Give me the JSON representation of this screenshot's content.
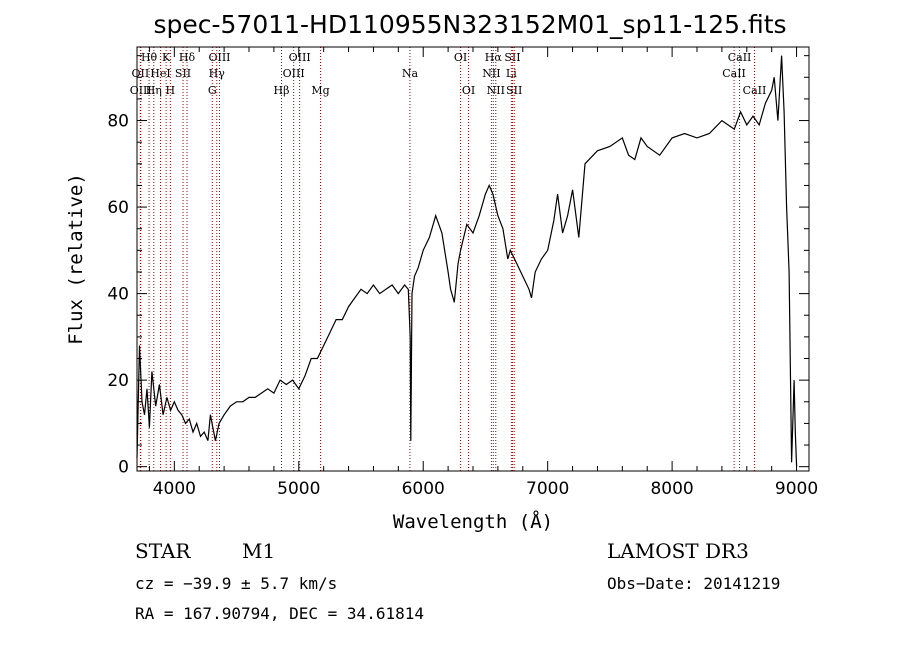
{
  "chart_data": {
    "type": "line",
    "title": "spec-57011-HD110955N323152M01_sp11-125.fits",
    "xlabel": "Wavelength (Å)",
    "ylabel": "Flux (relative)",
    "xlim": [
      3700,
      9100
    ],
    "ylim": [
      -1,
      97
    ],
    "x_ticks": [
      4000,
      5000,
      6000,
      7000,
      8000,
      9000
    ],
    "y_ticks": [
      0,
      20,
      40,
      60,
      80
    ],
    "series": [
      {
        "name": "flux",
        "x": [
          3700,
          3720,
          3740,
          3760,
          3780,
          3800,
          3820,
          3850,
          3880,
          3910,
          3940,
          3970,
          4000,
          4030,
          4060,
          4090,
          4120,
          4150,
          4180,
          4210,
          4240,
          4270,
          4290,
          4310,
          4330,
          4360,
          4400,
          4450,
          4500,
          4550,
          4600,
          4650,
          4700,
          4750,
          4800,
          4850,
          4900,
          4950,
          5000,
          5050,
          5100,
          5150,
          5200,
          5250,
          5300,
          5350,
          5400,
          5450,
          5500,
          5550,
          5600,
          5650,
          5700,
          5750,
          5800,
          5850,
          5880,
          5895,
          5900,
          5910,
          5930,
          5960,
          6000,
          6050,
          6100,
          6150,
          6200,
          6220,
          6250,
          6280,
          6300,
          6350,
          6400,
          6450,
          6500,
          6530,
          6560,
          6600,
          6640,
          6680,
          6700,
          6750,
          6800,
          6850,
          6870,
          6900,
          6950,
          7000,
          7050,
          7080,
          7120,
          7160,
          7200,
          7250,
          7300,
          7400,
          7500,
          7600,
          7650,
          7700,
          7750,
          7800,
          7900,
          8000,
          8100,
          8200,
          8300,
          8400,
          8500,
          8550,
          8600,
          8650,
          8700,
          8750,
          8800,
          8820,
          8850,
          8880,
          8900,
          8920,
          8940,
          8960,
          8980,
          8990,
          9000
        ],
        "values": [
          2,
          28,
          15,
          12,
          18,
          9,
          22,
          14,
          19,
          12,
          16,
          13,
          15,
          13,
          12,
          10,
          11,
          8,
          10,
          7,
          8,
          6,
          12,
          9,
          6,
          10,
          12,
          14,
          15,
          15,
          16,
          16,
          17,
          18,
          17,
          20,
          19,
          20,
          18,
          21,
          25,
          25,
          28,
          31,
          34,
          34,
          37,
          39,
          41,
          40,
          42,
          40,
          41,
          42,
          40,
          42,
          41,
          30,
          6,
          40,
          44,
          46,
          50,
          53,
          58,
          54,
          45,
          41,
          38,
          47,
          50,
          56,
          54,
          58,
          63,
          65,
          63,
          58,
          55,
          48,
          50,
          47,
          44,
          41,
          39,
          45,
          48,
          50,
          57,
          63,
          54,
          58,
          64,
          53,
          70,
          73,
          74,
          76,
          72,
          71,
          76,
          74,
          72,
          76,
          77,
          76,
          77,
          80,
          78,
          82,
          79,
          81,
          79,
          84,
          87,
          90,
          80,
          95,
          82,
          60,
          45,
          1,
          20,
          8,
          0
        ],
        "color": "#000000"
      }
    ],
    "spectral_lines": [
      {
        "label": "Hθ",
        "x": 3797,
        "row": 1
      },
      {
        "label": "OII",
        "x": 3727,
        "row": 2
      },
      {
        "label": "OIII",
        "x": 3730,
        "row": 3
      },
      {
        "label": "K",
        "x": 3934,
        "row": 1
      },
      {
        "label": "HeI",
        "x": 3889,
        "row": 2
      },
      {
        "label": "Hη",
        "x": 3835,
        "row": 3
      },
      {
        "label": "Hδ",
        "x": 4102,
        "row": 1
      },
      {
        "label": "SII",
        "x": 4070,
        "row": 2
      },
      {
        "label": "H",
        "x": 3968,
        "row": 3
      },
      {
        "label": "OIII",
        "x": 4363,
        "row": 1
      },
      {
        "label": "Hγ",
        "x": 4341,
        "row": 2
      },
      {
        "label": "G",
        "x": 4305,
        "row": 3
      },
      {
        "label": "OIII",
        "x": 5007,
        "row": 1
      },
      {
        "label": "OIII",
        "x": 4959,
        "row": 2
      },
      {
        "label": "Hβ",
        "x": 4861,
        "row": 3
      },
      {
        "label": "Mg",
        "x": 5175,
        "row": 3
      },
      {
        "label": "Na",
        "x": 5893,
        "row": 2
      },
      {
        "label": "OI",
        "x": 6300,
        "row": 1
      },
      {
        "label": "OI",
        "x": 6364,
        "row": 3
      },
      {
        "label": "Hα",
        "x": 6563,
        "row": 1
      },
      {
        "label": "SII",
        "x": 6717,
        "row": 1
      },
      {
        "label": "NII",
        "x": 6548,
        "row": 2
      },
      {
        "label": "Li",
        "x": 6708,
        "row": 2
      },
      {
        "label": "NII",
        "x": 6583,
        "row": 3
      },
      {
        "label": "SII",
        "x": 6731,
        "row": 3
      },
      {
        "label": "CaII",
        "x": 8542,
        "row": 1
      },
      {
        "label": "CaII",
        "x": 8498,
        "row": 2
      },
      {
        "label": "CaII",
        "x": 8662,
        "row": 3
      }
    ],
    "line_color": "#aa0000"
  },
  "info": {
    "class": "STAR",
    "subclass": "M1",
    "survey": "LAMOST DR3",
    "cz": "cz = −39.9 ± 5.7 km/s",
    "obs_date": "Obs−Date: 20141219",
    "coords": "RA = 167.90794, DEC =  34.61814"
  }
}
